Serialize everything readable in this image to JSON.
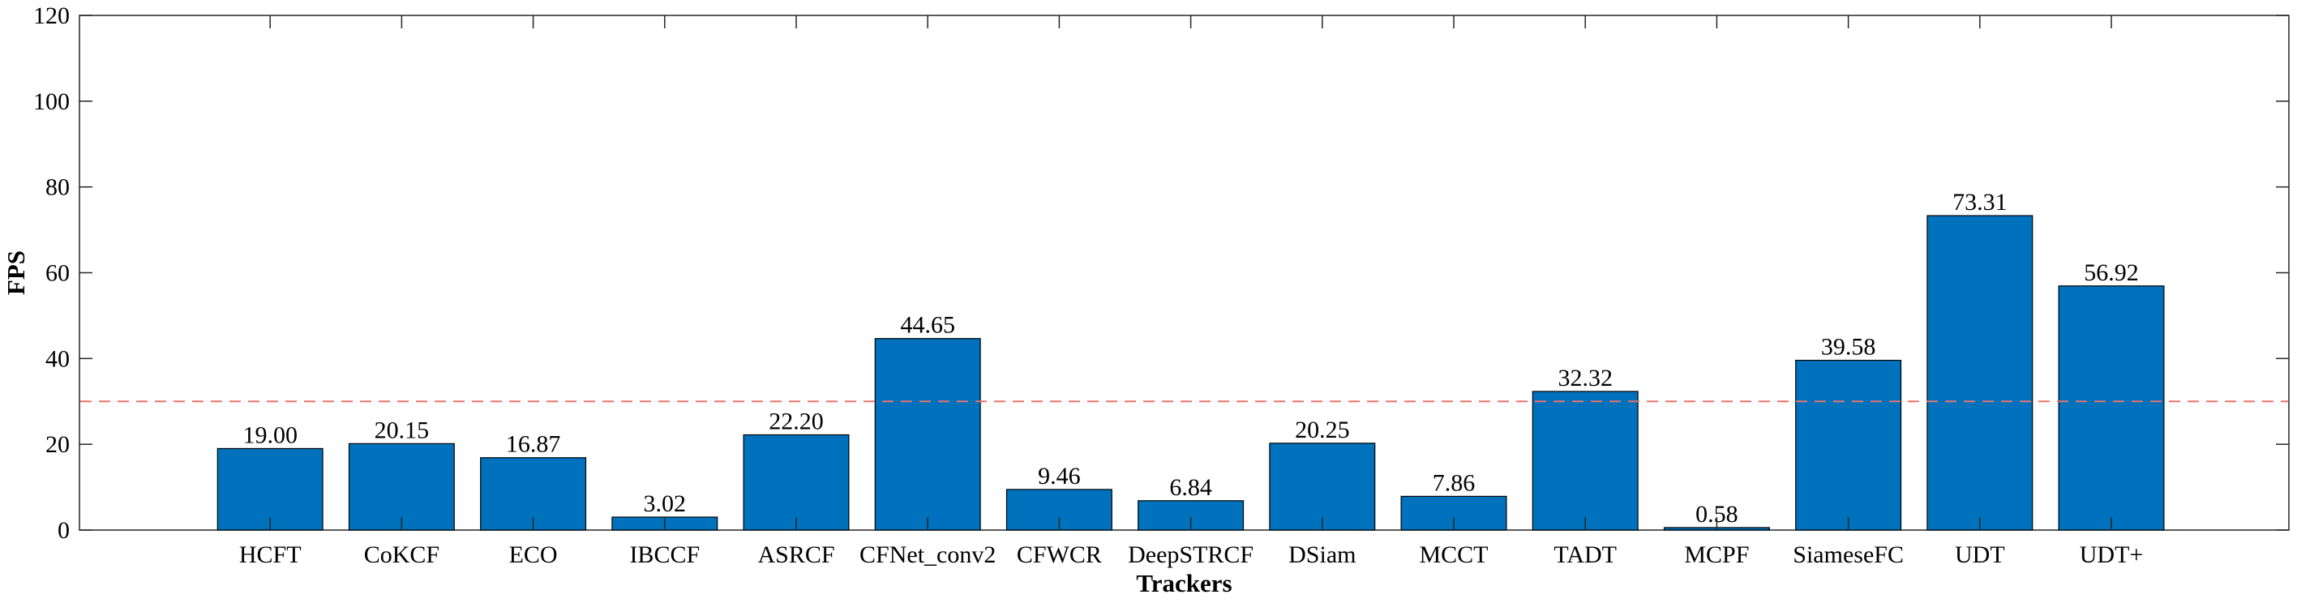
{
  "chart_data": {
    "type": "bar",
    "title": "",
    "xlabel": "Trackers",
    "ylabel": "FPS",
    "ylim": [
      0,
      120
    ],
    "yticks": [
      0,
      20,
      40,
      60,
      80,
      100,
      120
    ],
    "categories": [
      "HCFT",
      "CoKCF",
      "ECO",
      "IBCCF",
      "ASRCF",
      "CFNet_conv2",
      "CFWCR",
      "DeepSTRCF",
      "DSiam",
      "MCCT",
      "TADT",
      "MCPF",
      "SiameseFC",
      "UDT",
      "UDT+"
    ],
    "values": [
      19.0,
      20.15,
      16.87,
      3.02,
      22.2,
      44.65,
      9.46,
      6.84,
      20.25,
      7.86,
      32.32,
      0.58,
      39.58,
      73.31,
      56.92
    ],
    "value_labels": [
      "19.00",
      "20.15",
      "16.87",
      "3.02",
      "22.20",
      "44.65",
      "9.46",
      "6.84",
      "20.25",
      "7.86",
      "32.32",
      "0.58",
      "39.58",
      "73.31",
      "56.92"
    ],
    "reference_line": {
      "y": 30,
      "style": "dashed",
      "color": "#e8736f"
    },
    "bar_color": "#0072bd",
    "grid": false,
    "legend": "none"
  }
}
